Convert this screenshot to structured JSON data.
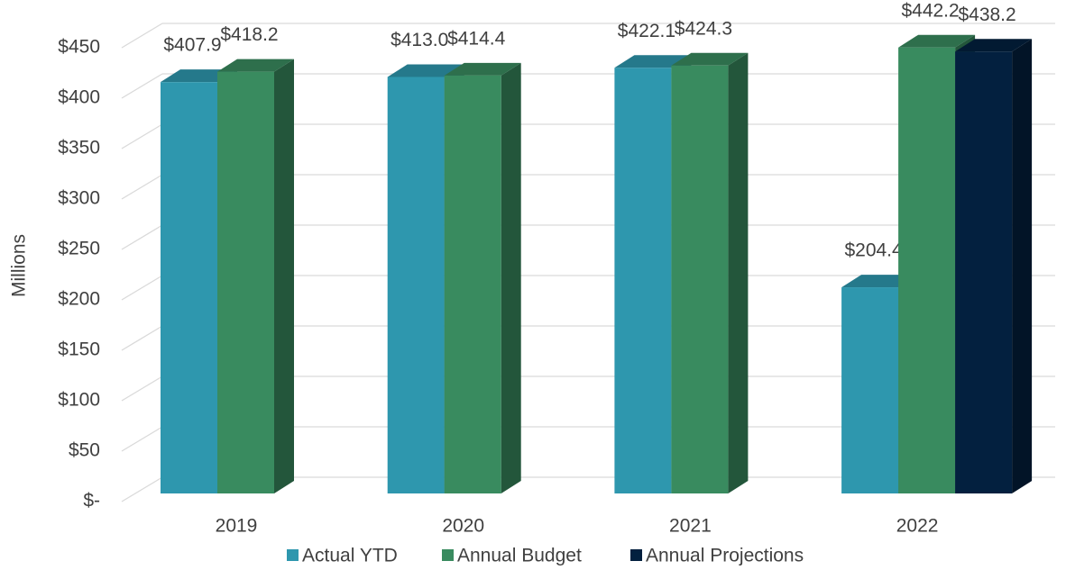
{
  "chart_data": {
    "type": "bar3d",
    "y_label": "Millions",
    "categories": [
      "2019",
      "2020",
      "2021",
      "2022"
    ],
    "series": [
      {
        "name": "Actual YTD",
        "color": "#2e97ae",
        "values": [
          407.9,
          413.0,
          422.1,
          204.4
        ],
        "value_labels": [
          "$407.9",
          "$413.0",
          "$422.1",
          "$204.4"
        ]
      },
      {
        "name": "Annual Budget",
        "color": "#398b5f",
        "values": [
          418.2,
          414.4,
          424.3,
          442.2
        ],
        "value_labels": [
          "$418.2",
          "$414.4",
          "$424.3",
          "$442.2"
        ]
      },
      {
        "name": "Annual Projections",
        "color": "#03203f",
        "values": [
          null,
          null,
          null,
          438.2
        ],
        "value_labels": [
          null,
          null,
          null,
          "$438.2"
        ]
      }
    ],
    "ylim": [
      0,
      450
    ],
    "yticks": [
      {
        "value": 0,
        "label": "$-"
      },
      {
        "value": 50,
        "label": "$50"
      },
      {
        "value": 100,
        "label": "$100"
      },
      {
        "value": 150,
        "label": "$150"
      },
      {
        "value": 200,
        "label": "$200"
      },
      {
        "value": 250,
        "label": "$250"
      },
      {
        "value": 300,
        "label": "$300"
      },
      {
        "value": 350,
        "label": "$350"
      },
      {
        "value": 400,
        "label": "$400"
      },
      {
        "value": 450,
        "label": "$450"
      }
    ],
    "grid": true,
    "legend": "bottom"
  }
}
